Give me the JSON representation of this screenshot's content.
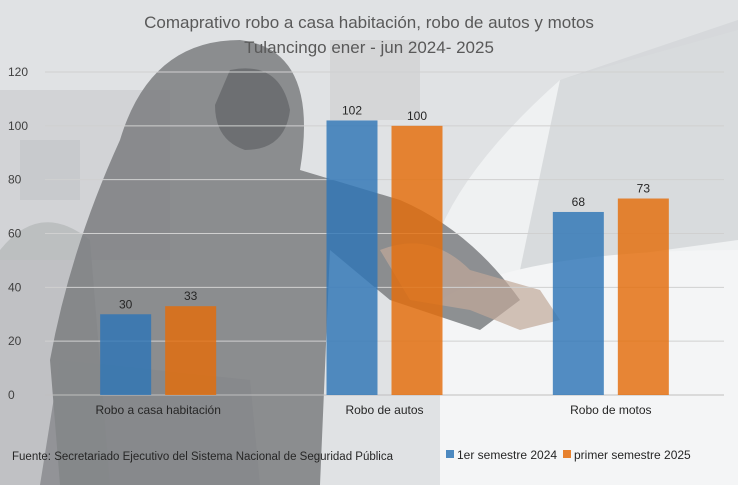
{
  "chart_data": {
    "type": "bar",
    "title": "Comaprativo robo a casa habitación, robo de autos y motos",
    "subtitle": "Tulancingo ener  - jun 2024- 2025",
    "categories": [
      "Robo a casa habitación",
      "Robo de autos",
      "Robo de motos"
    ],
    "series": [
      {
        "name": "1er semestre 2024",
        "values": [
          30,
          102,
          68
        ],
        "color": "#2e75b6"
      },
      {
        "name": "primer semestre 2025",
        "values": [
          33,
          100,
          73
        ],
        "color": "#e46c0a"
      }
    ],
    "ylim": [
      0,
      120
    ],
    "yticks": [
      0,
      20,
      40,
      60,
      80,
      100,
      120
    ],
    "grid": true,
    "legend_position": "bottom-right",
    "data_labels": true
  },
  "source_note": "Fuente:  Secretariado Ejecutivo del Sistema Nacional de Seguridad Pública"
}
